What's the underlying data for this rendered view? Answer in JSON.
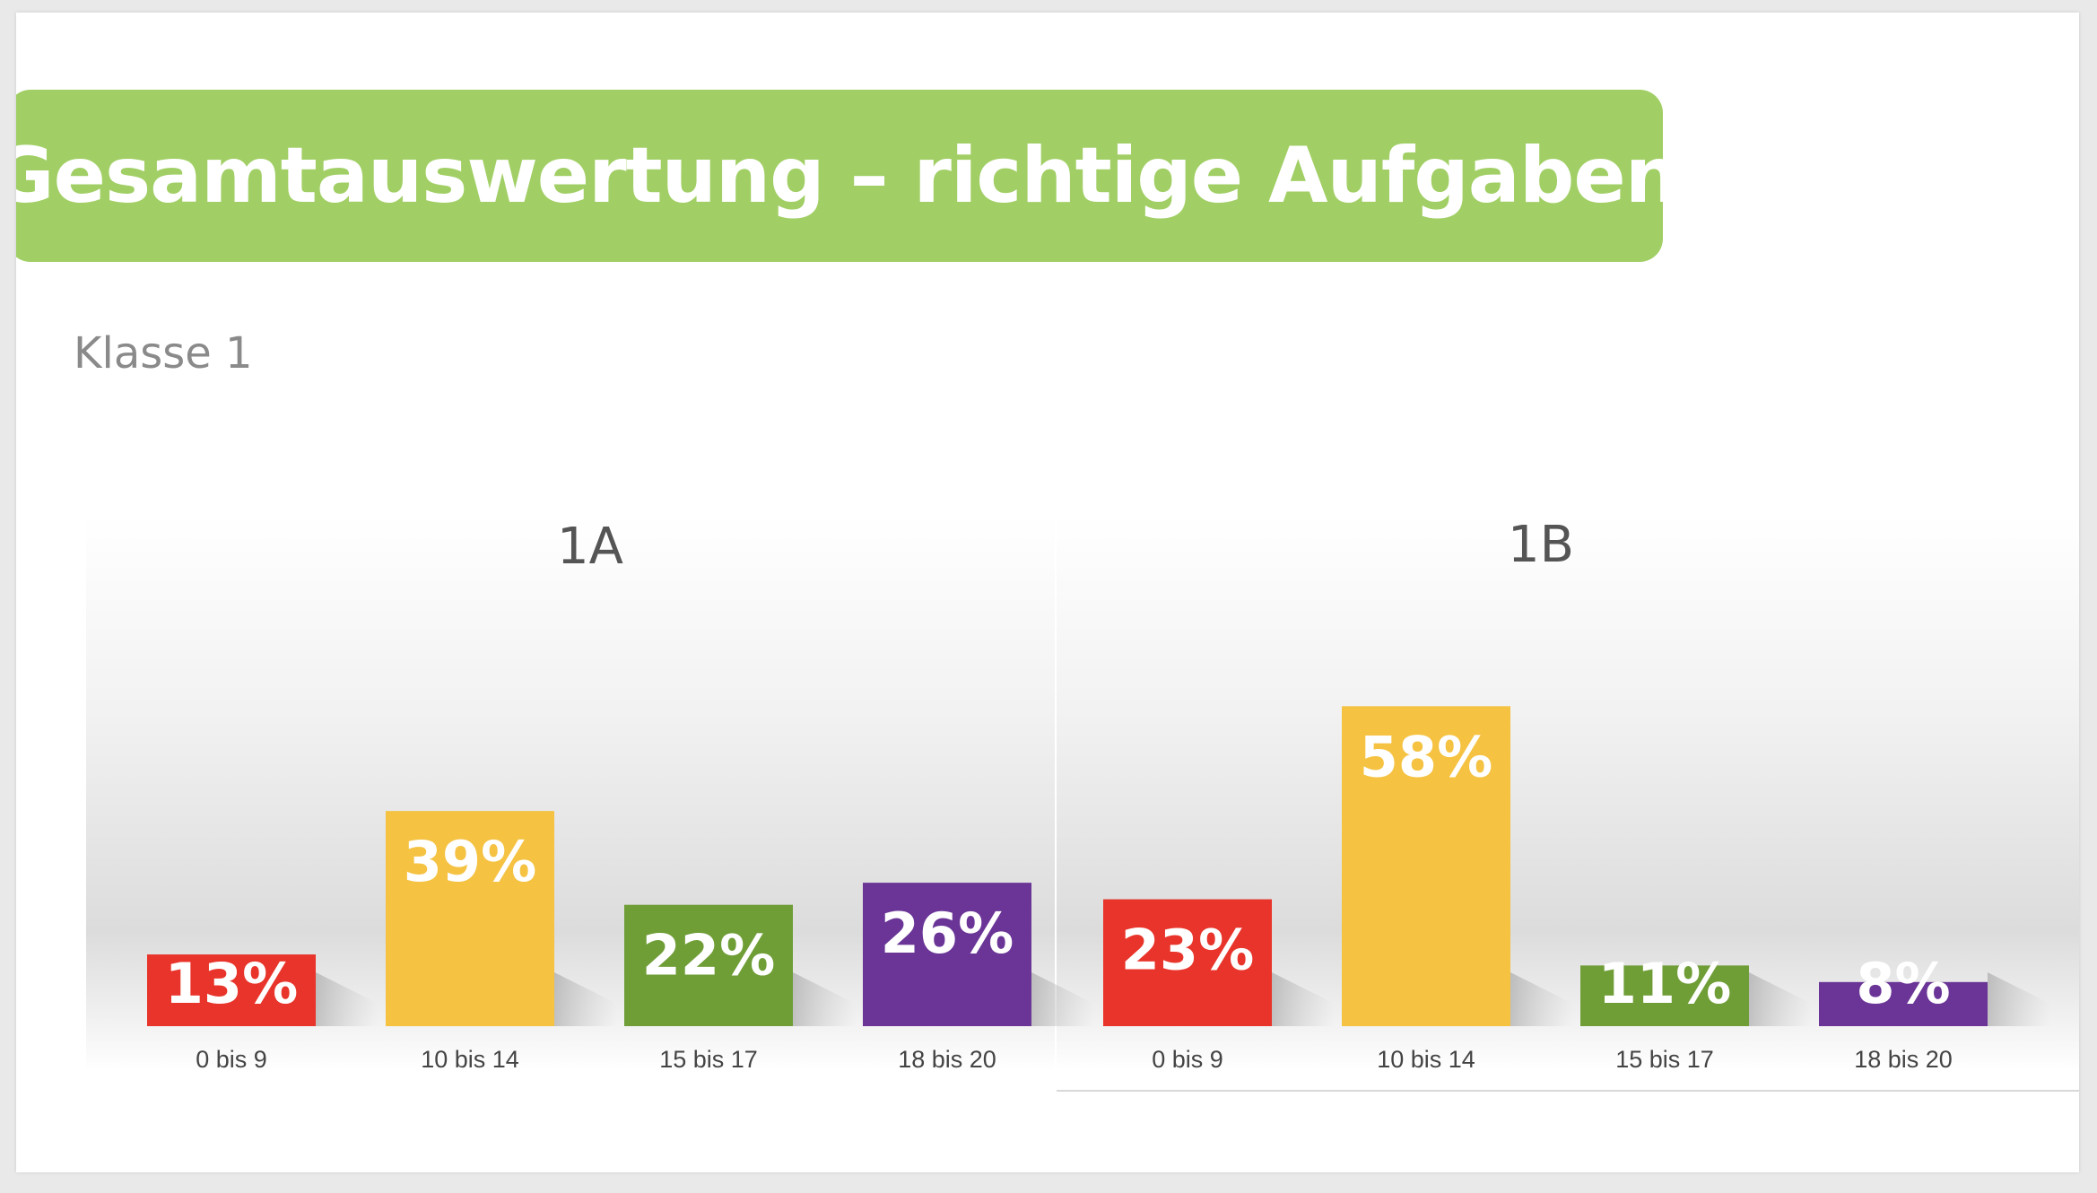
{
  "slide": {
    "title": "Gesamtauswertung – richtige Aufgaben",
    "subtitle": "Klasse 1"
  },
  "colors": {
    "banner": "#a1cf65",
    "red": "#e8342a",
    "yellow": "#f5c242",
    "green": "#6f9e37",
    "purple": "#6a3597"
  },
  "chart_data": [
    {
      "type": "bar",
      "title": "1A",
      "categories": [
        "0 bis 9",
        "10 bis 14",
        "15 bis 17",
        "18 bis 20"
      ],
      "values": [
        13,
        39,
        22,
        26
      ],
      "value_labels": [
        "13%",
        "39%",
        "22%",
        "26%"
      ],
      "colors": [
        "#e8342a",
        "#f5c242",
        "#6f9e37",
        "#6a3597"
      ],
      "ylim": [
        0,
        60
      ],
      "grid": false,
      "legend": "none"
    },
    {
      "type": "bar",
      "title": "1B",
      "categories": [
        "0 bis 9",
        "10 bis 14",
        "15 bis 17",
        "18 bis 20"
      ],
      "values": [
        23,
        58,
        11,
        8
      ],
      "value_labels": [
        "23%",
        "58%",
        "11%",
        "8%"
      ],
      "colors": [
        "#e8342a",
        "#f5c242",
        "#6f9e37",
        "#6a3597"
      ],
      "ylim": [
        0,
        60
      ],
      "grid": false,
      "legend": "none"
    }
  ]
}
